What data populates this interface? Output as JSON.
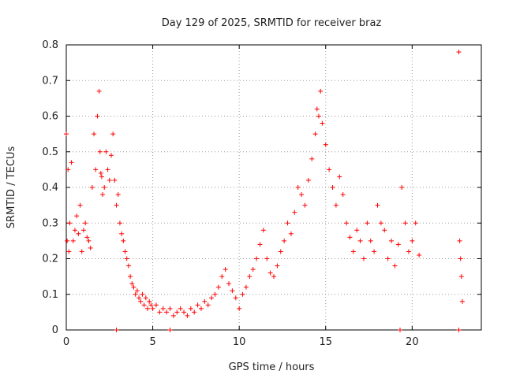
{
  "chart_data": {
    "type": "scatter",
    "title": "Day 129 of 2025, SRMTID for receiver braz",
    "xlabel": "GPS time / hours",
    "ylabel": "SRMTID / TECUs",
    "xlim": [
      0,
      24
    ],
    "ylim": [
      0,
      0.8
    ],
    "xticks": [
      "0",
      "5",
      "10",
      "15",
      "20"
    ],
    "yticks": [
      "0",
      "0.1",
      "0.2",
      "0.3",
      "0.4",
      "0.5",
      "0.6",
      "0.7",
      "0.8"
    ],
    "grid": true,
    "marker": "+",
    "color": "#ff0000",
    "series": [
      {
        "name": "SRMTID",
        "x": [
          0.0,
          0.05,
          0.1,
          0.15,
          0.2,
          0.3,
          0.4,
          0.5,
          0.6,
          0.7,
          0.8,
          0.9,
          1.0,
          1.1,
          1.2,
          1.3,
          1.4,
          1.5,
          1.6,
          1.7,
          1.8,
          1.9,
          1.95,
          2.0,
          2.05,
          2.1,
          2.2,
          2.3,
          2.4,
          2.5,
          2.6,
          2.7,
          2.8,
          2.9,
          3.0,
          3.1,
          3.2,
          3.3,
          3.4,
          3.5,
          3.6,
          3.7,
          3.8,
          3.9,
          4.0,
          4.1,
          4.2,
          4.3,
          4.4,
          4.5,
          4.6,
          4.7,
          4.8,
          4.9,
          5.0,
          5.2,
          5.4,
          5.6,
          5.8,
          6.0,
          6.2,
          6.4,
          6.6,
          6.8,
          7.0,
          7.2,
          7.4,
          7.6,
          7.8,
          8.0,
          8.2,
          8.4,
          8.6,
          8.8,
          9.0,
          9.2,
          9.4,
          9.6,
          9.8,
          10.0,
          10.2,
          10.4,
          10.6,
          10.8,
          11.0,
          11.2,
          11.4,
          11.6,
          11.8,
          12.0,
          12.2,
          12.4,
          12.6,
          12.8,
          13.0,
          13.2,
          13.4,
          13.6,
          13.8,
          14.0,
          14.2,
          14.4,
          14.5,
          14.6,
          14.7,
          14.8,
          15.0,
          15.2,
          15.4,
          15.6,
          15.8,
          16.0,
          16.2,
          16.4,
          16.6,
          16.8,
          17.0,
          17.2,
          17.4,
          17.6,
          17.8,
          18.0,
          18.2,
          18.4,
          18.6,
          18.8,
          19.0,
          19.2,
          19.4,
          19.6,
          19.8,
          20.0,
          20.2,
          20.4,
          22.7,
          22.75,
          22.8,
          22.85,
          22.9
        ],
        "y": [
          0.55,
          0.25,
          0.45,
          0.22,
          0.3,
          0.47,
          0.25,
          0.28,
          0.32,
          0.27,
          0.35,
          0.22,
          0.28,
          0.3,
          0.26,
          0.25,
          0.23,
          0.4,
          0.55,
          0.45,
          0.6,
          0.67,
          0.5,
          0.44,
          0.43,
          0.38,
          0.4,
          0.5,
          0.45,
          0.42,
          0.49,
          0.55,
          0.42,
          0.35,
          0.38,
          0.3,
          0.27,
          0.25,
          0.22,
          0.2,
          0.18,
          0.15,
          0.13,
          0.12,
          0.1,
          0.11,
          0.09,
          0.08,
          0.1,
          0.07,
          0.09,
          0.06,
          0.08,
          0.07,
          0.06,
          0.07,
          0.05,
          0.06,
          0.05,
          0.06,
          0.04,
          0.05,
          0.06,
          0.05,
          0.04,
          0.06,
          0.05,
          0.07,
          0.06,
          0.08,
          0.07,
          0.09,
          0.1,
          0.12,
          0.15,
          0.17,
          0.13,
          0.11,
          0.09,
          0.06,
          0.1,
          0.12,
          0.15,
          0.17,
          0.2,
          0.24,
          0.28,
          0.2,
          0.16,
          0.15,
          0.18,
          0.22,
          0.25,
          0.3,
          0.27,
          0.33,
          0.4,
          0.38,
          0.35,
          0.42,
          0.48,
          0.55,
          0.62,
          0.6,
          0.67,
          0.58,
          0.52,
          0.45,
          0.4,
          0.35,
          0.43,
          0.38,
          0.3,
          0.26,
          0.22,
          0.28,
          0.25,
          0.2,
          0.3,
          0.25,
          0.22,
          0.35,
          0.3,
          0.28,
          0.2,
          0.25,
          0.18,
          0.24,
          0.4,
          0.3,
          0.22,
          0.25,
          0.3,
          0.21,
          0.78,
          0.25,
          0.2,
          0.15,
          0.08
        ],
        "zeros_x": [
          2.9,
          6.0,
          19.3,
          22.7
        ]
      }
    ]
  }
}
